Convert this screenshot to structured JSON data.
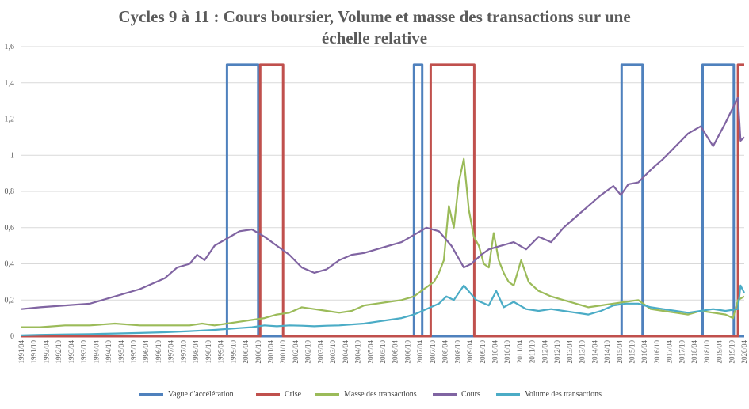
{
  "title_line1": "Cycles 9 à 11 : Cours boursier, Volume et masse des transactions sur une",
  "title_line2": "échelle relative",
  "chart_data": {
    "type": "line",
    "title": "Cycles 9 à 11 : Cours boursier, Volume et masse des transactions sur une échelle relative",
    "ylim": [
      0,
      1.6
    ],
    "yticks": [
      "0",
      "0,2",
      "0,4",
      "0,6",
      "0,8",
      "1",
      "1,2",
      "1,4",
      "1,6"
    ],
    "xlim": [
      1991.25,
      2020.25
    ],
    "xtick_labels": [
      "1991/04",
      "1991/10",
      "1992/04",
      "1992/10",
      "1993/04",
      "1993/10",
      "1994/04",
      "1994/10",
      "1995/04",
      "1995/10",
      "1996/04",
      "1996/10",
      "1997/04",
      "1997/10",
      "1998/04",
      "1998/10",
      "1999/04",
      "1999/10",
      "2000/04",
      "2000/10",
      "2001/04",
      "2001/10",
      "2002/04",
      "2002/10",
      "2003/04",
      "2003/10",
      "2004/04",
      "2004/10",
      "2005/04",
      "2005/10",
      "2006/04",
      "2006/10",
      "2007/04",
      "2007/10",
      "2008/04",
      "2008/10",
      "2009/04",
      "2009/10",
      "2010/04",
      "2010/10",
      "2011/04",
      "2011/10",
      "2012/04",
      "2012/10",
      "2013/04",
      "2013/10",
      "2014/04",
      "2014/10",
      "2015/04",
      "2015/10",
      "2016/04",
      "2016/10",
      "2017/04",
      "2017/10",
      "2018/04",
      "2018/10",
      "2019/04",
      "2019/10",
      "2020/04"
    ],
    "grid": "horizontal",
    "legend_position": "bottom",
    "series": [
      {
        "name": "Vague d'accélération",
        "color": "#4f81bd",
        "kind": "step",
        "x": [
          1991.25,
          1999.5,
          1999.5,
          2000.75,
          2000.75,
          2007.0,
          2007.0,
          2007.33,
          2007.33,
          2015.33,
          2015.33,
          2016.17,
          2016.17,
          2018.58,
          2018.58,
          2019.83,
          2019.83,
          2020.25
        ],
        "values": [
          0,
          0,
          1.5,
          1.5,
          0,
          0,
          1.5,
          1.5,
          0,
          0,
          1.5,
          1.5,
          0,
          0,
          1.5,
          1.5,
          0,
          0
        ]
      },
      {
        "name": "Crise",
        "color": "#c0504d",
        "kind": "step",
        "x": [
          1991.25,
          2000.83,
          2000.83,
          2001.75,
          2001.75,
          2007.67,
          2007.67,
          2009.42,
          2009.42,
          2020.0,
          2020.0,
          2020.25
        ],
        "values": [
          0,
          0,
          1.5,
          1.5,
          0,
          0,
          1.5,
          1.5,
          0,
          0,
          1.5,
          1.5
        ]
      },
      {
        "name": "Masse des transactions",
        "color": "#9bbb59",
        "x": [
          1991.25,
          1992,
          1993,
          1994,
          1995,
          1996,
          1997,
          1998,
          1998.5,
          1999,
          1999.5,
          2000,
          2000.5,
          2001,
          2001.5,
          2002,
          2002.5,
          2003,
          2003.5,
          2004,
          2004.5,
          2005,
          2005.5,
          2006,
          2006.5,
          2007,
          2007.3,
          2007.6,
          2007.8,
          2008,
          2008.2,
          2008.4,
          2008.6,
          2008.8,
          2009,
          2009.2,
          2009.4,
          2009.6,
          2009.8,
          2010,
          2010.2,
          2010.4,
          2010.6,
          2010.8,
          2011,
          2011.3,
          2011.6,
          2012,
          2012.5,
          2013,
          2013.5,
          2014,
          2014.5,
          2015,
          2015.5,
          2016,
          2016.5,
          2017,
          2017.5,
          2018,
          2018.5,
          2019,
          2019.5,
          2019.8,
          2020,
          2020.25
        ],
        "values": [
          0.05,
          0.05,
          0.06,
          0.06,
          0.07,
          0.06,
          0.06,
          0.06,
          0.07,
          0.06,
          0.07,
          0.08,
          0.09,
          0.1,
          0.12,
          0.13,
          0.16,
          0.15,
          0.14,
          0.13,
          0.14,
          0.17,
          0.18,
          0.19,
          0.2,
          0.22,
          0.25,
          0.28,
          0.3,
          0.35,
          0.42,
          0.72,
          0.6,
          0.85,
          0.98,
          0.7,
          0.55,
          0.5,
          0.4,
          0.38,
          0.57,
          0.42,
          0.35,
          0.3,
          0.28,
          0.42,
          0.3,
          0.25,
          0.22,
          0.2,
          0.18,
          0.16,
          0.17,
          0.18,
          0.19,
          0.2,
          0.15,
          0.14,
          0.13,
          0.12,
          0.14,
          0.13,
          0.12,
          0.1,
          0.2,
          0.22
        ]
      },
      {
        "name": "Cours",
        "color": "#8064a2",
        "x": [
          1991.25,
          1992,
          1993,
          1994,
          1995,
          1996,
          1997,
          1997.5,
          1998,
          1998.3,
          1998.6,
          1999,
          1999.5,
          2000,
          2000.5,
          2001,
          2001.5,
          2002,
          2002.5,
          2003,
          2003.5,
          2004,
          2004.5,
          2005,
          2005.5,
          2006,
          2006.5,
          2007,
          2007.5,
          2008,
          2008.5,
          2009,
          2009.3,
          2009.7,
          2010,
          2010.5,
          2011,
          2011.5,
          2012,
          2012.5,
          2013,
          2013.5,
          2014,
          2014.5,
          2015,
          2015.3,
          2015.6,
          2016,
          2016.5,
          2017,
          2017.5,
          2018,
          2018.5,
          2019,
          2019.5,
          2020,
          2020.1,
          2020.25
        ],
        "values": [
          0.15,
          0.16,
          0.17,
          0.18,
          0.22,
          0.26,
          0.32,
          0.38,
          0.4,
          0.45,
          0.42,
          0.5,
          0.54,
          0.58,
          0.59,
          0.55,
          0.5,
          0.45,
          0.38,
          0.35,
          0.37,
          0.42,
          0.45,
          0.46,
          0.48,
          0.5,
          0.52,
          0.56,
          0.6,
          0.58,
          0.5,
          0.38,
          0.4,
          0.45,
          0.48,
          0.5,
          0.52,
          0.48,
          0.55,
          0.52,
          0.6,
          0.66,
          0.72,
          0.78,
          0.83,
          0.78,
          0.84,
          0.85,
          0.92,
          0.98,
          1.05,
          1.12,
          1.16,
          1.05,
          1.18,
          1.32,
          1.08,
          1.1
        ]
      },
      {
        "name": "Volume des transactions",
        "color": "#4bacc6",
        "x": [
          1991.25,
          1992,
          1993,
          1994,
          1995,
          1996,
          1997,
          1998,
          1999,
          2000,
          2000.5,
          2001,
          2001.5,
          2002,
          2002.5,
          2003,
          2003.5,
          2004,
          2004.5,
          2005,
          2005.5,
          2006,
          2006.5,
          2007,
          2007.5,
          2008,
          2008.3,
          2008.6,
          2009,
          2009.5,
          2010,
          2010.3,
          2010.6,
          2011,
          2011.5,
          2012,
          2012.5,
          2013,
          2013.5,
          2014,
          2014.5,
          2015,
          2015.5,
          2016,
          2016.5,
          2017,
          2017.5,
          2018,
          2018.5,
          2019,
          2019.5,
          2020,
          2020.1,
          2020.25
        ],
        "values": [
          0.005,
          0.008,
          0.01,
          0.012,
          0.015,
          0.018,
          0.022,
          0.028,
          0.035,
          0.045,
          0.05,
          0.06,
          0.055,
          0.06,
          0.058,
          0.055,
          0.058,
          0.06,
          0.065,
          0.07,
          0.08,
          0.09,
          0.1,
          0.12,
          0.15,
          0.18,
          0.22,
          0.2,
          0.28,
          0.2,
          0.17,
          0.25,
          0.16,
          0.19,
          0.15,
          0.14,
          0.15,
          0.14,
          0.13,
          0.12,
          0.14,
          0.17,
          0.18,
          0.18,
          0.16,
          0.15,
          0.14,
          0.13,
          0.14,
          0.15,
          0.14,
          0.15,
          0.28,
          0.24
        ]
      }
    ]
  }
}
